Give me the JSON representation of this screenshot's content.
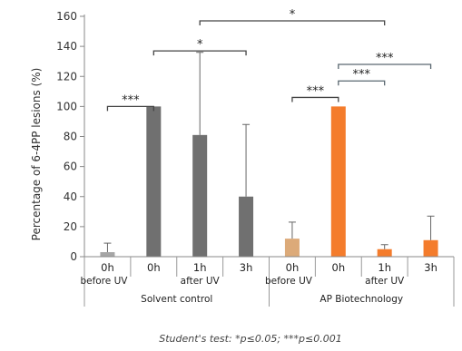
{
  "chart_data": {
    "type": "bar",
    "ylabel": "Percentage of 6-4PP lesions (%)",
    "ylim": [
      0,
      160
    ],
    "yticks": [
      0,
      20,
      40,
      60,
      80,
      100,
      120,
      140,
      160
    ],
    "groups": [
      {
        "name": "Solvent control",
        "categories": [
          {
            "label": "0h",
            "sub": "before UV"
          },
          {
            "label": "0h",
            "sub": ""
          },
          {
            "label": "1h",
            "sub": "after UV"
          },
          {
            "label": "3h",
            "sub": ""
          }
        ],
        "values": [
          3,
          100,
          81,
          40
        ],
        "errors": [
          6,
          0,
          55,
          48
        ]
      },
      {
        "name": "AP Biotechnology",
        "categories": [
          {
            "label": "0h",
            "sub": "before UV"
          },
          {
            "label": "0h",
            "sub": ""
          },
          {
            "label": "1h",
            "sub": "after UV"
          },
          {
            "label": "3h",
            "sub": ""
          }
        ],
        "values": [
          12,
          100,
          5,
          11
        ],
        "errors": [
          11,
          0,
          3,
          16
        ]
      }
    ],
    "colors": {
      "control_before": "#a6a6a6",
      "control": "#707070",
      "ap_before": "#dcaa79",
      "ap": "#f47c2c",
      "error": "#666666",
      "bracket_black": "#444444"
    },
    "significance": [
      {
        "from": [
          0,
          0
        ],
        "to": [
          0,
          1
        ],
        "label": "***",
        "level": 100
      },
      {
        "from": [
          0,
          1
        ],
        "to": [
          0,
          3
        ],
        "label": "*",
        "level": 137
      },
      {
        "from": [
          0,
          2
        ],
        "to": [
          1,
          2
        ],
        "label": "*",
        "level": 157
      },
      {
        "from": [
          1,
          0
        ],
        "to": [
          1,
          1
        ],
        "label": "***",
        "level": 106
      },
      {
        "from": [
          1,
          1
        ],
        "to": [
          1,
          2
        ],
        "label": "***",
        "level": 117
      },
      {
        "from": [
          1,
          1
        ],
        "to": [
          1,
          3
        ],
        "label": "***",
        "level": 128
      }
    ],
    "footnote": "Student's test: *p≤0.05; ***p≤0.001"
  }
}
